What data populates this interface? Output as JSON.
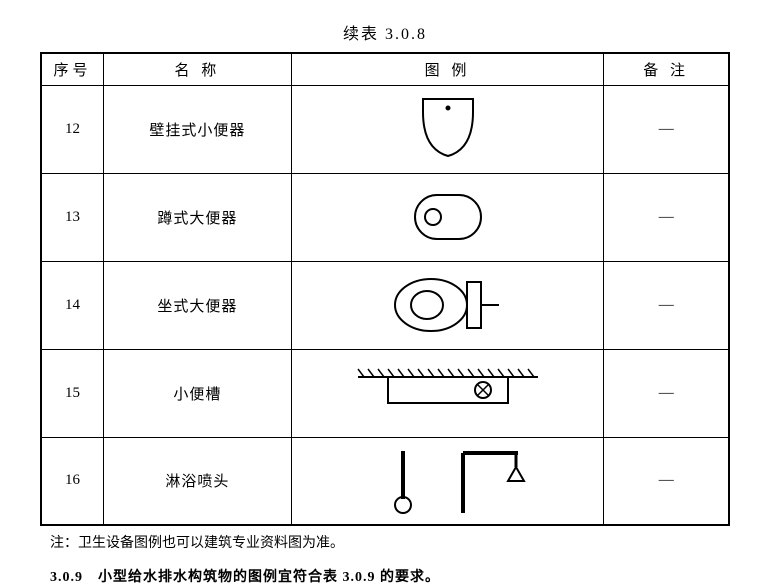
{
  "title": "续表 3.0.8",
  "headers": {
    "num": "序号",
    "name": "名 称",
    "legend": "图 例",
    "note": "备 注"
  },
  "rows": [
    {
      "num": "12",
      "name": "壁挂式小便器",
      "legend_type": "urinal_wall",
      "note": "—"
    },
    {
      "num": "13",
      "name": "蹲式大便器",
      "legend_type": "squat_toilet",
      "note": "—"
    },
    {
      "num": "14",
      "name": "坐式大便器",
      "legend_type": "sit_toilet",
      "note": "—"
    },
    {
      "num": "15",
      "name": "小便槽",
      "legend_type": "urinal_trough",
      "note": "—"
    },
    {
      "num": "16",
      "name": "淋浴喷头",
      "legend_type": "shower_head",
      "note": "—"
    }
  ],
  "note": "注：卫生设备图例也可以建筑专业资料图为准。",
  "footer": "3.0.9　小型给水排水构筑物的图例宜符合表 3.0.9 的要求。",
  "style": {
    "stroke": "#000000",
    "stroke_width": 2,
    "fill": "none",
    "bg": "#ffffff"
  }
}
